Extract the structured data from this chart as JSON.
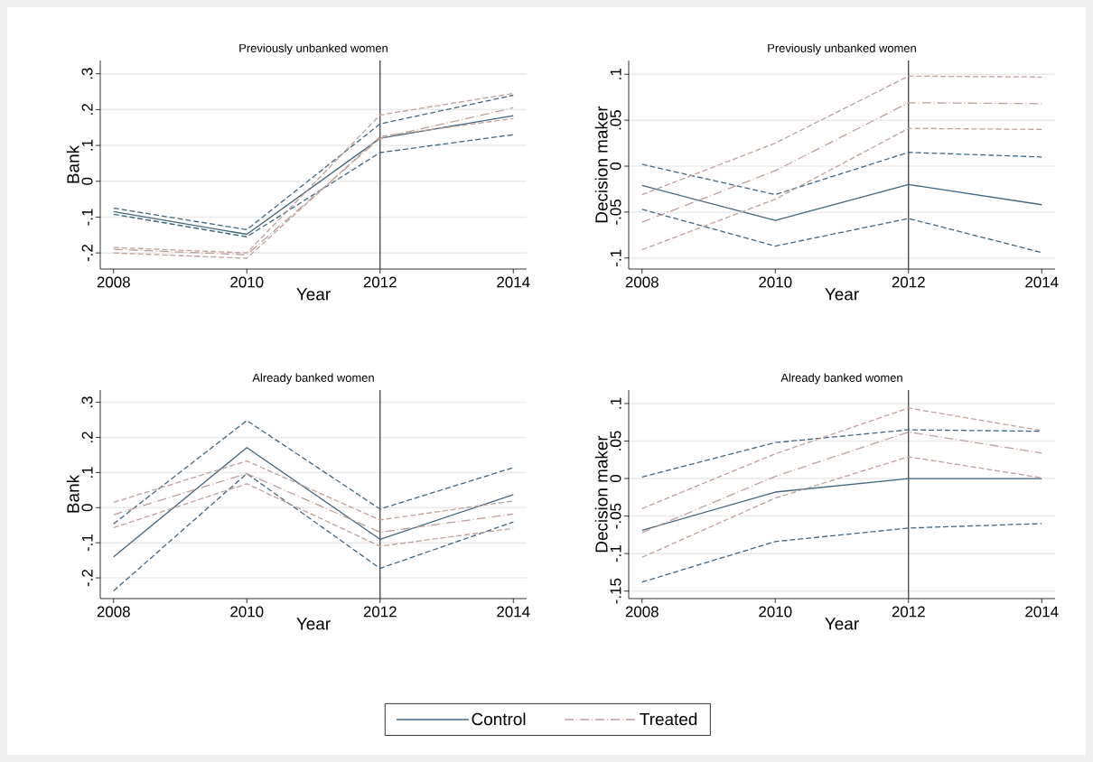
{
  "chart_data": [
    {
      "type": "line",
      "title": "Previously unbanked women",
      "xlabel": "Year",
      "ylabel": "Bank",
      "x": [
        2008,
        2010,
        2012,
        2014
      ],
      "xlim": [
        2007.8,
        2014.2
      ],
      "xticks": [
        2008,
        2010,
        2012,
        2014
      ],
      "ylim": [
        -0.245,
        0.337
      ],
      "yticks": [
        {
          "value": -0.2,
          "label": "-.2"
        },
        {
          "value": -0.1,
          "label": "-.1"
        },
        0,
        {
          "value": 0.1,
          "label": ".1"
        },
        {
          "value": 0.2,
          "label": ".2"
        },
        {
          "value": 0.3,
          "label": ".3"
        }
      ],
      "grid": "y",
      "ref_lines": [
        {
          "axis": "x",
          "value": 2012,
          "color": "#333333"
        }
      ],
      "series": [
        {
          "color": "#3f6680",
          "line_style": "solid",
          "values": [
            -0.085,
            -0.148,
            0.12,
            0.183
          ]
        },
        {
          "color": "#3f6680",
          "line_style": "dashed",
          "values": [
            -0.075,
            -0.135,
            0.16,
            0.24
          ]
        },
        {
          "color": "#3f6680",
          "line_style": "dashed",
          "values": [
            -0.092,
            -0.155,
            0.08,
            0.13
          ]
        },
        {
          "color": "#bf9f96",
          "line_style": "dashdot",
          "values": [
            -0.19,
            -0.205,
            0.12,
            0.205
          ]
        },
        {
          "color": "#bf9f96",
          "line_style": "dashed",
          "values": [
            -0.185,
            -0.2,
            0.185,
            0.245
          ]
        },
        {
          "color": "#bf9f96",
          "line_style": "dashed",
          "values": [
            -0.2,
            -0.215,
            0.125,
            0.175
          ]
        }
      ]
    },
    {
      "type": "line",
      "title": "Previously unbanked women",
      "xlabel": "Year",
      "ylabel": "Decision maker",
      "x": [
        2008,
        2010,
        2012,
        2014
      ],
      "xlim": [
        2007.8,
        2014.2
      ],
      "xticks": [
        2008,
        2010,
        2012,
        2014
      ],
      "ylim": [
        -0.112,
        0.115
      ],
      "yticks": [
        {
          "value": -0.1,
          "label": "-.1"
        },
        {
          "value": -0.05,
          "label": "-.05"
        },
        0,
        {
          "value": 0.05,
          "label": ".05"
        },
        {
          "value": 0.1,
          "label": ".1"
        }
      ],
      "grid": "y",
      "ref_lines": [
        {
          "axis": "x",
          "value": 2012,
          "color": "#333333"
        }
      ],
      "series": [
        {
          "color": "#3f6680",
          "line_style": "solid",
          "values": [
            -0.021,
            -0.059,
            -0.02,
            -0.042
          ]
        },
        {
          "color": "#3f6680",
          "line_style": "dashed",
          "values": [
            0.002,
            -0.031,
            0.015,
            0.01
          ]
        },
        {
          "color": "#3f6680",
          "line_style": "dashed",
          "values": [
            -0.047,
            -0.087,
            -0.057,
            -0.094
          ]
        },
        {
          "color": "#bf9f96",
          "line_style": "dashdot",
          "values": [
            -0.061,
            -0.005,
            0.069,
            0.068
          ]
        },
        {
          "color": "#bf9f96",
          "line_style": "dashed",
          "values": [
            -0.031,
            0.025,
            0.098,
            0.097
          ]
        },
        {
          "color": "#bf9f96",
          "line_style": "dashed",
          "values": [
            -0.091,
            -0.036,
            0.041,
            0.04
          ]
        }
      ]
    },
    {
      "type": "line",
      "title": "Already banked women",
      "xlabel": "Year",
      "ylabel": "Bank",
      "x": [
        2008,
        2010,
        2012,
        2014
      ],
      "xlim": [
        2007.8,
        2014.2
      ],
      "xticks": [
        2008,
        2010,
        2012,
        2014
      ],
      "ylim": [
        -0.259,
        0.335
      ],
      "yticks": [
        {
          "value": -0.2,
          "label": "-.2"
        },
        {
          "value": -0.1,
          "label": "-.1"
        },
        0,
        {
          "value": 0.1,
          "label": ".1"
        },
        {
          "value": 0.2,
          "label": ".2"
        },
        {
          "value": 0.3,
          "label": ".3"
        }
      ],
      "grid": "y",
      "ref_lines": [
        {
          "axis": "x",
          "value": 2012,
          "color": "#333333"
        }
      ],
      "series": [
        {
          "color": "#3f6680",
          "line_style": "solid",
          "values": [
            -0.14,
            0.171,
            -0.09,
            0.037
          ]
        },
        {
          "color": "#3f6680",
          "line_style": "dashed",
          "values": [
            -0.046,
            0.248,
            -0.004,
            0.114
          ]
        },
        {
          "color": "#3f6680",
          "line_style": "dashed",
          "values": [
            -0.237,
            0.097,
            -0.173,
            -0.041
          ]
        },
        {
          "color": "#bf9f96",
          "line_style": "dashdot",
          "values": [
            -0.02,
            0.097,
            -0.07,
            -0.018
          ]
        },
        {
          "color": "#bf9f96",
          "line_style": "dashed",
          "values": [
            0.015,
            0.133,
            -0.035,
            0.019
          ]
        },
        {
          "color": "#bf9f96",
          "line_style": "dashed",
          "values": [
            -0.057,
            0.068,
            -0.11,
            -0.059
          ]
        }
      ]
    },
    {
      "type": "line",
      "title": "Already banked women",
      "xlabel": "Year",
      "ylabel": "Decision maker",
      "x": [
        2008,
        2010,
        2012,
        2014
      ],
      "xlim": [
        2007.8,
        2014.2
      ],
      "xticks": [
        2008,
        2010,
        2012,
        2014
      ],
      "ylim": [
        -0.16,
        0.118
      ],
      "yticks": [
        {
          "value": -0.15,
          "label": "-.15"
        },
        {
          "value": -0.1,
          "label": "-.1"
        },
        {
          "value": -0.05,
          "label": "-.05"
        },
        0,
        {
          "value": 0.05,
          "label": ".05"
        },
        {
          "value": 0.1,
          "label": ".1"
        }
      ],
      "grid": "y",
      "legend": "bottom",
      "ref_lines": [
        {
          "axis": "x",
          "value": 2012,
          "color": "#333333"
        }
      ],
      "series": [
        {
          "name": "Control",
          "color": "#3f6680",
          "line_style": "solid",
          "values": [
            -0.069,
            -0.018,
            0,
            0
          ]
        },
        {
          "color": "#3f6680",
          "line_style": "dashed",
          "values": [
            0.002,
            0.048,
            0.065,
            0.063
          ]
        },
        {
          "color": "#3f6680",
          "line_style": "dashed",
          "values": [
            -0.138,
            -0.084,
            -0.066,
            -0.06
          ]
        },
        {
          "name": "Treated",
          "color": "#bf9f96",
          "line_style": "dashdot",
          "values": [
            -0.072,
            0.003,
            0.062,
            0.034
          ]
        },
        {
          "color": "#bf9f96",
          "line_style": "dashed",
          "values": [
            -0.04,
            0.033,
            0.094,
            0.064
          ]
        },
        {
          "color": "#bf9f96",
          "line_style": "dashed",
          "values": [
            -0.105,
            -0.026,
            0.029,
            0.001
          ]
        }
      ]
    }
  ]
}
